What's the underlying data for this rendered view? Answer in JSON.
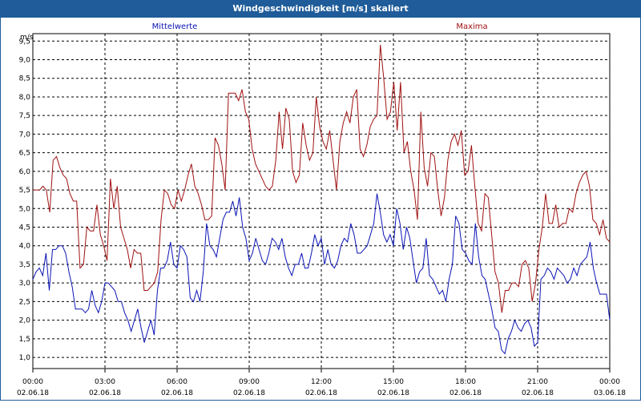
{
  "window": {
    "title": "Windgeschwindigkeit [m/s] skaliert"
  },
  "colors": {
    "title_bar": "#1f5c99",
    "mean": "#0a14b4",
    "max": "#a01010",
    "grid": "#000000"
  },
  "chart_data": {
    "type": "line",
    "title": "Windgeschwindigkeit [m/s] skaliert",
    "ylabel": "m/s",
    "xlabel": "",
    "ylim": [
      0.7,
      9.7
    ],
    "xlim": [
      0,
      24
    ],
    "grid": true,
    "legend_placement": "top",
    "y_ticks": [
      "1,0",
      "1,5",
      "2,0",
      "2,5",
      "3,0",
      "3,5",
      "4,0",
      "4,5",
      "5,0",
      "5,5",
      "6,0",
      "6,5",
      "7,0",
      "7,5",
      "8,0",
      "8,5",
      "9,0",
      "9,5"
    ],
    "y_tick_values": [
      1.0,
      1.5,
      2.0,
      2.5,
      3.0,
      3.5,
      4.0,
      4.5,
      5.0,
      5.5,
      6.0,
      6.5,
      7.0,
      7.5,
      8.0,
      8.5,
      9.0,
      9.5
    ],
    "x_ticks": [
      {
        "hours": 0,
        "time": "00:00",
        "date": "02.06.18"
      },
      {
        "hours": 3,
        "time": "03:00",
        "date": "02.06.18"
      },
      {
        "hours": 6,
        "time": "06:00",
        "date": "02.06.18"
      },
      {
        "hours": 9,
        "time": "09:00",
        "date": "02.06.18"
      },
      {
        "hours": 12,
        "time": "12:00",
        "date": "02.06.18"
      },
      {
        "hours": 15,
        "time": "15:00",
        "date": "02.06.18"
      },
      {
        "hours": 18,
        "time": "18:00",
        "date": "02.06.18"
      },
      {
        "hours": 21,
        "time": "21:00",
        "date": "02.06.18"
      },
      {
        "hours": 24,
        "time": "00:00",
        "date": "03.06.18"
      }
    ],
    "series": [
      {
        "name": "Mittelwerte",
        "color": "#0a14b4",
        "values": [
          3.1,
          3.3,
          3.4,
          3.2,
          3.8,
          2.8,
          3.9,
          3.9,
          4.0,
          4.0,
          3.8,
          3.3,
          2.9,
          2.3,
          2.3,
          2.3,
          2.2,
          2.3,
          2.8,
          2.4,
          2.2,
          2.5,
          3.0,
          3.0,
          2.9,
          2.8,
          2.5,
          2.5,
          2.2,
          2.0,
          1.7,
          2.0,
          2.3,
          1.8,
          1.4,
          1.7,
          2.0,
          1.6,
          2.8,
          3.4,
          3.4,
          3.6,
          4.1,
          3.5,
          3.4,
          4.0,
          3.9,
          3.7,
          2.6,
          2.5,
          2.8,
          2.5,
          3.3,
          4.6,
          4.0,
          3.9,
          3.7,
          4.2,
          4.7,
          4.9,
          4.9,
          5.2,
          4.8,
          5.3,
          4.5,
          4.2,
          3.6,
          3.8,
          4.2,
          3.9,
          3.6,
          3.5,
          3.8,
          4.2,
          4.1,
          3.9,
          4.2,
          3.7,
          3.4,
          3.2,
          3.5,
          3.5,
          3.8,
          3.4,
          3.4,
          3.8,
          4.3,
          4.0,
          4.2,
          3.5,
          3.9,
          3.5,
          3.4,
          3.6,
          4.0,
          4.2,
          4.1,
          4.6,
          4.3,
          3.8,
          3.8,
          3.9,
          4.0,
          4.3,
          4.6,
          5.4,
          4.9,
          4.3,
          4.1,
          4.3,
          4.0,
          5.0,
          4.6,
          3.9,
          4.5,
          4.2,
          3.6,
          3.0,
          3.3,
          3.4,
          4.2,
          3.2,
          3.1,
          2.9,
          2.7,
          2.8,
          2.5,
          3.1,
          3.5,
          4.8,
          4.6,
          3.9,
          3.8,
          3.6,
          3.5,
          4.6,
          3.7,
          3.2,
          3.1,
          2.7,
          2.3,
          1.8,
          1.7,
          1.2,
          1.1,
          1.5,
          1.7,
          2.0,
          1.8,
          1.7,
          1.9,
          2.0,
          1.8,
          1.3,
          1.4,
          3.1,
          3.2,
          3.4,
          3.3,
          3.1,
          3.4,
          3.3,
          3.2,
          3.0,
          3.1,
          3.4,
          3.2,
          3.5,
          3.6,
          3.7,
          4.1,
          3.4,
          3.0,
          2.7,
          2.7,
          2.7,
          2.0
        ]
      },
      {
        "name": "Maxima",
        "color": "#a01010",
        "values": [
          5.5,
          5.5,
          5.5,
          5.6,
          5.5,
          4.9,
          6.3,
          6.4,
          6.1,
          5.9,
          5.8,
          5.4,
          5.2,
          5.2,
          3.4,
          3.5,
          4.5,
          4.4,
          4.4,
          5.1,
          4.3,
          4.0,
          3.6,
          5.8,
          5.0,
          5.6,
          4.5,
          4.2,
          3.9,
          3.4,
          3.9,
          3.8,
          3.8,
          2.8,
          2.8,
          2.9,
          3.0,
          3.3,
          4.7,
          5.5,
          5.4,
          5.1,
          5.0,
          5.5,
          5.2,
          5.5,
          5.9,
          6.2,
          5.6,
          5.4,
          5.1,
          4.7,
          4.7,
          4.8,
          6.9,
          6.7,
          6.2,
          5.5,
          8.1,
          8.1,
          8.1,
          7.9,
          8.2,
          7.6,
          7.4,
          6.6,
          6.2,
          6.0,
          5.8,
          5.6,
          5.5,
          5.6,
          6.3,
          7.6,
          6.6,
          7.7,
          7.4,
          6.0,
          5.7,
          5.9,
          7.3,
          6.7,
          6.3,
          6.5,
          8.0,
          7.2,
          6.8,
          6.6,
          7.1,
          6.3,
          5.5,
          6.8,
          7.3,
          7.6,
          7.3,
          8.0,
          8.2,
          6.6,
          6.4,
          6.7,
          7.2,
          7.4,
          7.5,
          9.4,
          8.5,
          7.4,
          7.6,
          8.4,
          7.1,
          8.4,
          6.5,
          6.8,
          6.0,
          5.5,
          4.7,
          7.6,
          6.1,
          5.6,
          6.5,
          6.4,
          5.5,
          4.8,
          5.3,
          6.3,
          6.8,
          7.0,
          6.7,
          7.1,
          5.9,
          6.0,
          6.7,
          5.6,
          4.6,
          4.4,
          5.4,
          5.3,
          4.3,
          3.3,
          3.0,
          2.2,
          2.8,
          2.8,
          3.0,
          3.0,
          2.9,
          3.5,
          3.6,
          3.4,
          2.5,
          3.0,
          3.9,
          4.5,
          5.4,
          4.6,
          4.6,
          5.1,
          4.5,
          4.6,
          4.6,
          5.0,
          4.9,
          5.4,
          5.7,
          5.9,
          6.0,
          5.6,
          4.7,
          4.6,
          4.3,
          4.7,
          4.2,
          4.1
        ]
      }
    ]
  }
}
